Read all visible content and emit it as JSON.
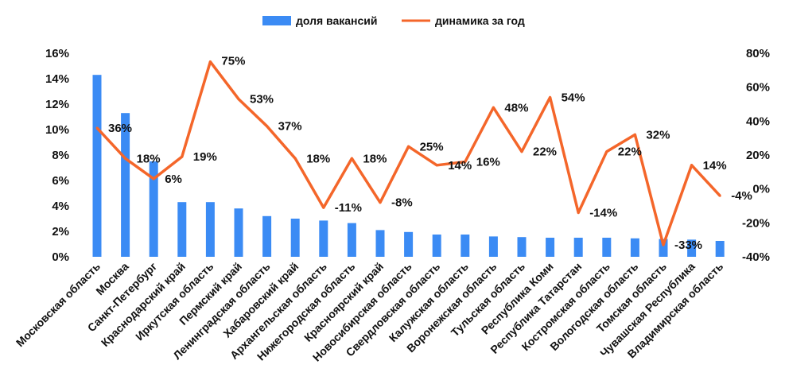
{
  "chart_data": {
    "type": "bar+line",
    "categories": [
      "Московская область",
      "Москва",
      "Санкт-Петербург",
      "Краснодарский край",
      "Иркутская область",
      "Пермский край",
      "Ленинградская область",
      "Хабаровский край",
      "Архангельская область",
      "Нижегородская область",
      "Красноярский край",
      "Новосибирская область",
      "Свердловская область",
      "Калужская область",
      "Воронежская область",
      "Тульская область",
      "Республика Коми",
      "Республика Татарстан",
      "Костромская область",
      "Вологодская область",
      "Томская область",
      "Чувашская Республика",
      "Владимирская область"
    ],
    "series": [
      {
        "name": "доля вакансий",
        "type": "bar",
        "axis": "left",
        "color": "#3b8bf4",
        "values": [
          14.3,
          11.3,
          7.5,
          4.3,
          4.3,
          3.8,
          3.2,
          3.0,
          2.85,
          2.65,
          2.1,
          1.95,
          1.75,
          1.75,
          1.6,
          1.55,
          1.5,
          1.5,
          1.5,
          1.45,
          1.4,
          1.35,
          1.25
        ]
      },
      {
        "name": "динамика за год",
        "type": "line",
        "axis": "right",
        "color": "#f4662a",
        "values": [
          36,
          18,
          6,
          19,
          75,
          53,
          37,
          18,
          -11,
          18,
          -8,
          25,
          14,
          16,
          48,
          22,
          54,
          -14,
          22,
          32,
          -33,
          14,
          -4
        ],
        "labels": [
          "36%",
          "18%",
          "6%",
          "19%",
          "75%",
          "53%",
          "37%",
          "18%",
          "-11%",
          "18%",
          "-8%",
          "25%",
          "14%",
          "16%",
          "48%",
          "22%",
          "54%",
          "-14%",
          "22%",
          "32%",
          "-33%",
          "14%",
          "-4%"
        ]
      }
    ],
    "left_axis": {
      "ticks": [
        "0%",
        "2%",
        "4%",
        "6%",
        "8%",
        "10%",
        "12%",
        "14%",
        "16%"
      ],
      "ylim": [
        0,
        16
      ]
    },
    "right_axis": {
      "ticks": [
        "-40%",
        "-20%",
        "0%",
        "20%",
        "40%",
        "60%",
        "80%"
      ],
      "ylim": [
        -40,
        80
      ]
    },
    "legend_position": "top-center",
    "grid": false
  }
}
